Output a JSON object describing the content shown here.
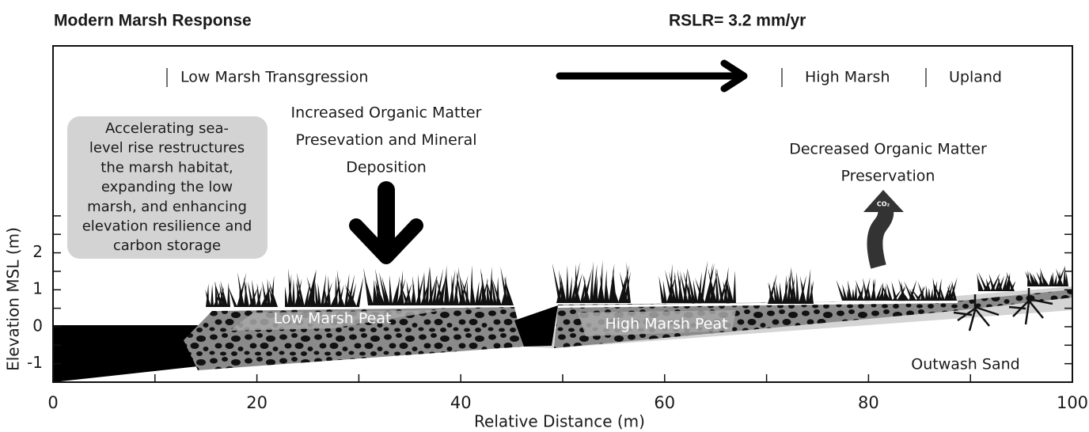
{
  "header": {
    "title": "Modern Marsh Response",
    "rate": "RSLR= 3.2 mm/yr"
  },
  "axes": {
    "xlim": [
      0,
      100
    ],
    "ylim": [
      -1.5,
      7.6
    ],
    "xticks": [
      0,
      20,
      40,
      60,
      80,
      100
    ],
    "xminor": [
      10,
      30,
      50,
      70,
      90
    ],
    "yticks": [
      -1,
      0,
      1,
      2
    ],
    "yminor": [
      -0.5,
      0.5,
      1.5,
      2.5,
      3
    ],
    "xlabel": "Relative Distance (m)",
    "ylabel": "Elevation MSL (m)"
  },
  "zones": [
    "Low Marsh Transgression",
    "High Marsh",
    "Upland"
  ],
  "callout": [
    "Accelerating sea-",
    "level rise restructures",
    "the marsh habitat,",
    "expanding the low",
    "marsh, and enhancing",
    "elevation resilience and",
    "carbon storage"
  ],
  "annotations": {
    "increased": [
      "Increased Organic Matter",
      "Presevation and Mineral",
      "Deposition"
    ],
    "decreased": [
      "Decreased Organic Matter",
      "Preservation"
    ],
    "gas": "CO₂"
  },
  "layers": {
    "low_peat": "Low Marsh Peat",
    "high_peat": "High Marsh Peat",
    "sand": "Outwash Sand"
  }
}
